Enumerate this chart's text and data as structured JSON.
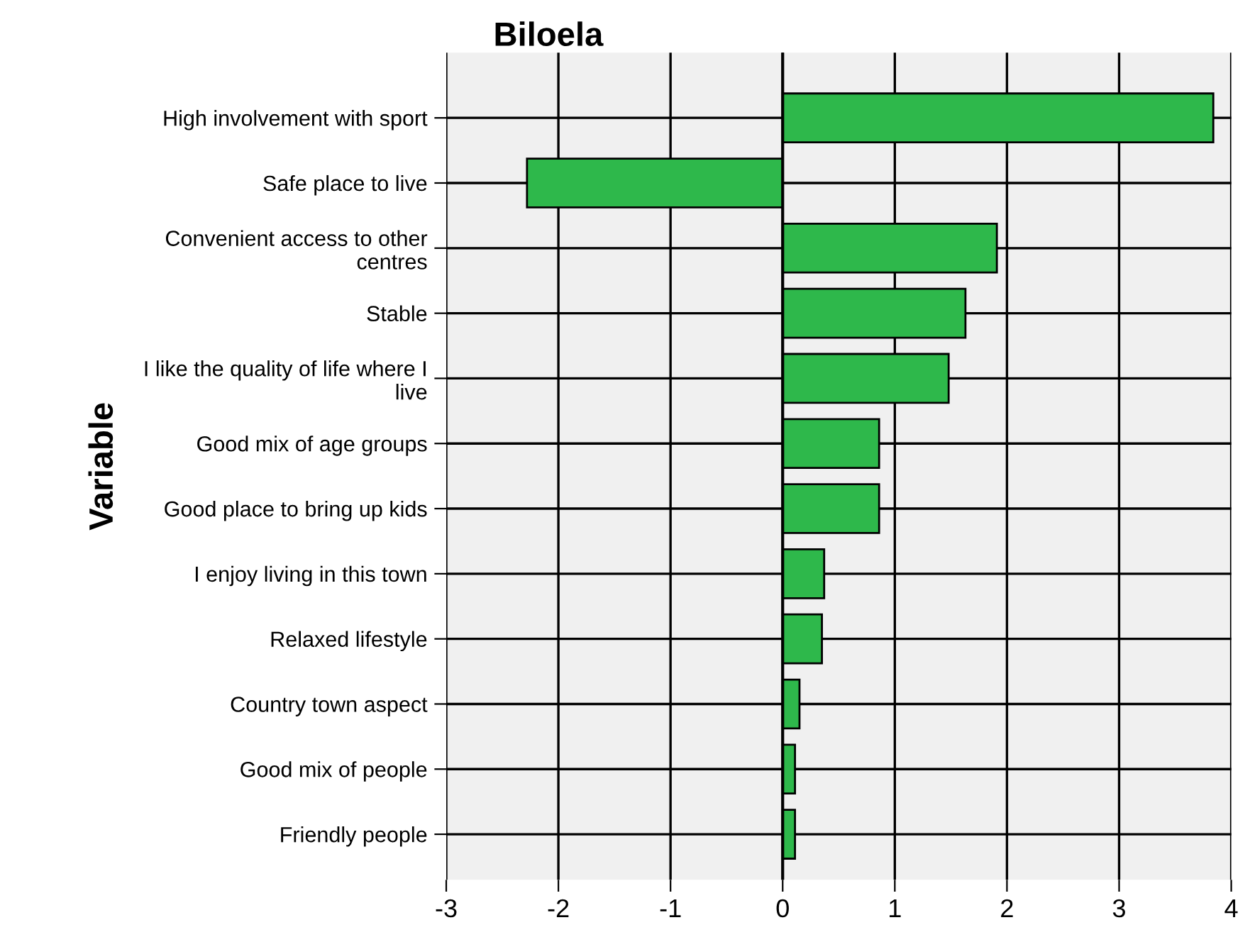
{
  "chart_data": {
    "type": "bar",
    "orientation": "horizontal",
    "title": "Biloela",
    "ylabel": "Variable",
    "categories": [
      "High involvement with sport",
      "Safe place to live",
      "Convenient access to other\ncentres",
      "Stable",
      "I like the quality of life where I\nlive",
      "Good mix of age groups",
      "Good place to bring up kids",
      "I enjoy living in this town",
      "Relaxed lifestyle",
      "Country town aspect",
      "Good mix of people",
      "Friendly people"
    ],
    "values": [
      3.84,
      -2.28,
      1.91,
      1.63,
      1.48,
      0.86,
      0.86,
      0.37,
      0.35,
      0.15,
      0.11,
      0.11
    ],
    "color": "#2eb84b",
    "xlim": [
      -3,
      4
    ],
    "xticks": [
      -3,
      -2,
      -1,
      0,
      1,
      2,
      3,
      4
    ],
    "grid": true
  }
}
